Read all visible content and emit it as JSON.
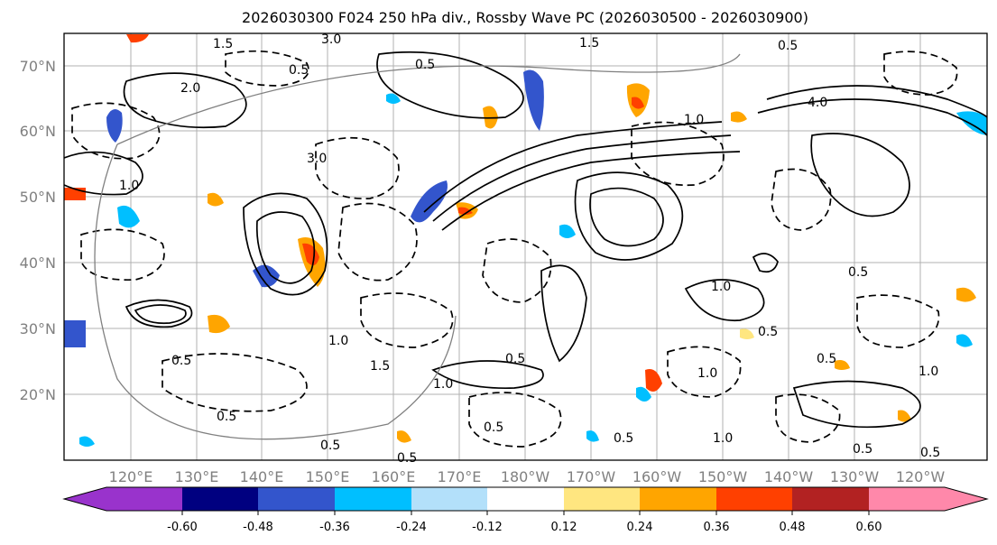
{
  "title": "2026030300 F024 250 hPa div., Rossby Wave PC (2026030500 - 2026030900)",
  "map": {
    "lat_ticks": [
      "70°N",
      "60°N",
      "50°N",
      "40°N",
      "30°N",
      "20°N"
    ],
    "lon_ticks": [
      "120°E",
      "130°E",
      "140°E",
      "150°E",
      "160°E",
      "170°E",
      "180°W",
      "170°W",
      "160°W",
      "150°W",
      "140°W",
      "130°W",
      "120°W"
    ],
    "contour_labels": [
      "1.5",
      "3.0",
      "1.5",
      "0.5",
      "2.0",
      "0.5",
      "1.0",
      "3.0",
      "4.0",
      "1.0",
      "0.5",
      "1.0",
      "0.5",
      "1.0",
      "0.5",
      "0.5",
      "1.0",
      "0.5",
      "1.5",
      "1.0",
      "0.5",
      "0.5",
      "0.5",
      "1.0",
      "0.5",
      "0.5",
      "0.5",
      "1.0",
      "0.5",
      "0.5"
    ]
  },
  "colorbar": {
    "tick_labels": [
      "-0.60",
      "-0.48",
      "-0.36",
      "-0.24",
      "-0.12",
      "0.12",
      "0.24",
      "0.36",
      "0.48",
      "0.60"
    ],
    "colors": [
      "#9933cc",
      "#000080",
      "#3355cc",
      "#00bfff",
      "#b3e0fa",
      "#ffffff",
      "#ffe680",
      "#ffa500",
      "#ff4000",
      "#b22222",
      "#ff88aa"
    ]
  }
}
